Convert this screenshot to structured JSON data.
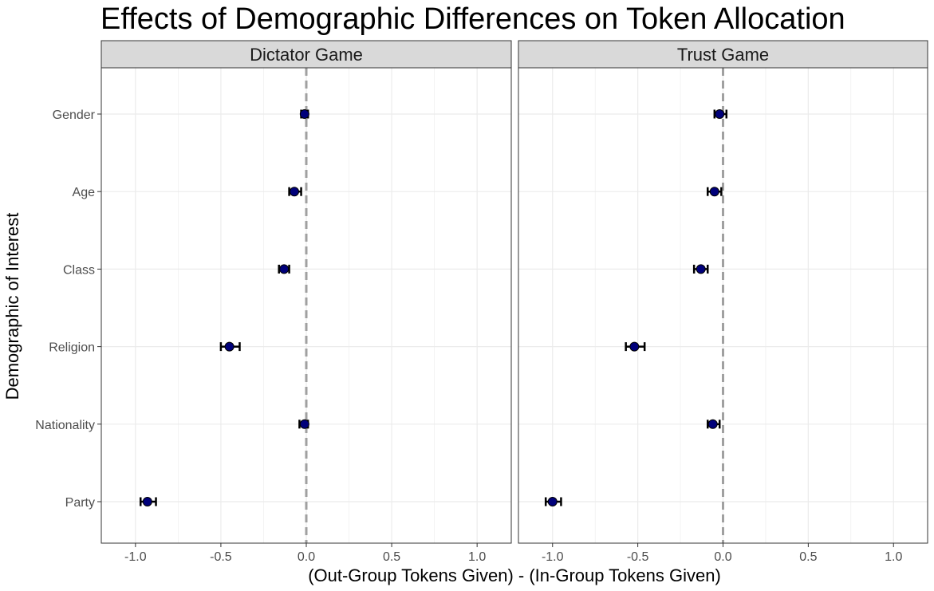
{
  "chart_data": {
    "type": "scatter",
    "subtype": "point-range facet plot",
    "title": "Effects of Demographic Differences on Token Allocation",
    "xlabel": "(Out-Group Tokens Given) - (In-Group Tokens Given)",
    "ylabel": "Demographic of Interest",
    "xlim": [
      -1.2,
      1.2
    ],
    "x_ticks": [
      -1.0,
      -0.5,
      0.0,
      0.5,
      1.0
    ],
    "x_tick_labels": [
      "-1.0",
      "-0.5",
      "0.0",
      "0.5",
      "1.0"
    ],
    "categories": [
      "Gender",
      "Age",
      "Class",
      "Religion",
      "Nationality",
      "Party"
    ],
    "reference_line": 0,
    "grid": true,
    "colors": {
      "point": "#00007a",
      "errorbar": "#000000",
      "reference_line": "#a0a0a0",
      "strip_fill": "#d9d9d9",
      "grid": "#ebebeb"
    },
    "facets": [
      {
        "label": "Dictator Game",
        "points": [
          {
            "category": "Gender",
            "estimate": -0.01,
            "lower": -0.03,
            "upper": 0.01
          },
          {
            "category": "Age",
            "estimate": -0.07,
            "lower": -0.1,
            "upper": -0.03
          },
          {
            "category": "Class",
            "estimate": -0.13,
            "lower": -0.16,
            "upper": -0.1
          },
          {
            "category": "Religion",
            "estimate": -0.45,
            "lower": -0.5,
            "upper": -0.39
          },
          {
            "category": "Nationality",
            "estimate": -0.01,
            "lower": -0.04,
            "upper": 0.01
          },
          {
            "category": "Party",
            "estimate": -0.93,
            "lower": -0.97,
            "upper": -0.88
          }
        ]
      },
      {
        "label": "Trust Game",
        "points": [
          {
            "category": "Gender",
            "estimate": -0.02,
            "lower": -0.05,
            "upper": 0.02
          },
          {
            "category": "Age",
            "estimate": -0.05,
            "lower": -0.09,
            "upper": -0.01
          },
          {
            "category": "Class",
            "estimate": -0.13,
            "lower": -0.17,
            "upper": -0.09
          },
          {
            "category": "Religion",
            "estimate": -0.52,
            "lower": -0.57,
            "upper": -0.46
          },
          {
            "category": "Nationality",
            "estimate": -0.06,
            "lower": -0.09,
            "upper": -0.02
          },
          {
            "category": "Party",
            "estimate": -1.0,
            "lower": -1.04,
            "upper": -0.95
          }
        ]
      }
    ]
  }
}
